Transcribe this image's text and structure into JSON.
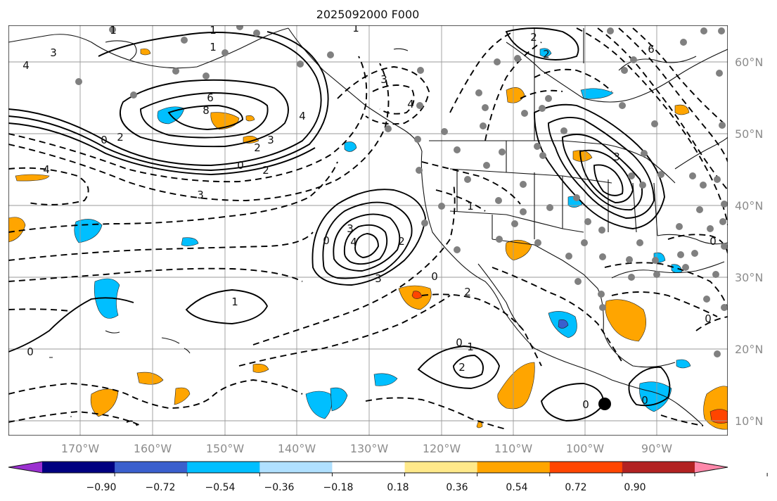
{
  "title": "2025092000 F000",
  "map": {
    "lon_range": [
      -178,
      -82
    ],
    "lat_range": [
      8,
      65
    ],
    "lat_labels": [
      "10°N",
      "20°N",
      "30°N",
      "40°N",
      "50°N",
      "60°N"
    ],
    "lon_labels": [
      "170°W",
      "160°W",
      "150°W",
      "140°W",
      "130°W",
      "120°W",
      "110°W",
      "100°W",
      "90°W"
    ]
  },
  "colorbar": {
    "ticks": [
      "−0.90",
      "−0.72",
      "−0.54",
      "−0.36",
      "−0.18",
      "0.18",
      "0.36",
      "0.54",
      "0.72",
      "0.90"
    ],
    "colors": [
      "#9b30d0",
      "#000080",
      "#3a5fcd",
      "#00bfff",
      "#b0e0ff",
      "#ffffff",
      "#ffe98a",
      "#ffa500",
      "#ff4500",
      "#b22222",
      "#ff88aa"
    ]
  },
  "contour_labels": [
    "1",
    "1",
    "1",
    "3",
    "4",
    "2",
    "2",
    "6",
    "8",
    "4",
    "2",
    "3",
    "0",
    "2",
    "2",
    "0",
    "4",
    "3",
    "4",
    "3",
    "0",
    "2",
    "3",
    "1",
    "4",
    "3",
    "0",
    "2",
    "1",
    "0",
    "1",
    "2",
    "0",
    "0",
    "0",
    "3",
    "0",
    "0",
    "6",
    "1"
  ],
  "colors": {
    "land_line": "#111111",
    "grid": "#9a9a9a",
    "station": "#808080"
  }
}
